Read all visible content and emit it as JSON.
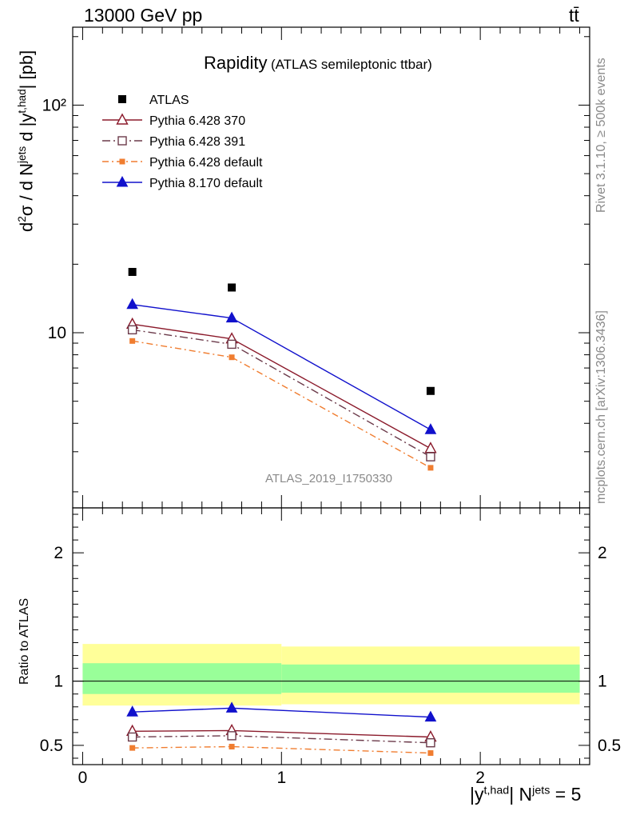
{
  "header": {
    "energy": "13000 GeV pp",
    "process": "tt̄"
  },
  "side_labels": {
    "rivet": "Rivet 3.1.10, ≥ 500k events",
    "mcplots": "mcplots.cern.ch [arXiv:1306.3436]"
  },
  "title": {
    "main": "Rapidity",
    "sub": "(ATLAS semileptonic ttbar)"
  },
  "watermark": "ATLAS_2019_I1750330",
  "axes": {
    "ylabel_main": "d²σ / d N^jets d |y^t,had| [pb]",
    "ylabel_ratio": "Ratio to ATLAS",
    "xlabel": "|y^t,had| N^jets = 5"
  },
  "legend": [
    "ATLAS",
    "Pythia 6.428 370",
    "Pythia 6.428 391",
    "Pythia 6.428 default",
    "Pythia 8.170 default"
  ],
  "colors": {
    "data": "#000000",
    "p370": "#8b1a2b",
    "p391": "#6b3a4a",
    "pdef": "#f07d30",
    "p8": "#1111cc",
    "band_inner": "#99ff99",
    "band_outer": "#ffff99"
  },
  "chart_data": {
    "type": "line",
    "x": [
      0.25,
      0.75,
      1.75
    ],
    "xlim": [
      -0.05,
      2.55
    ],
    "ylim_main": [
      1.7,
      220
    ],
    "yscale_main": "log",
    "ylim_ratio": [
      0.35,
      2.35
    ],
    "x_ticks": [
      "0",
      "1",
      "2"
    ],
    "y_ticks_main": [
      "10",
      "10²"
    ],
    "y_ticks_ratio": [
      "0.5",
      "1",
      "2"
    ],
    "data": {
      "name": "ATLAS",
      "values": [
        18.5,
        15.8,
        5.55
      ]
    },
    "series": [
      {
        "name": "Pythia 6.428 370",
        "values": [
          10.9,
          9.4,
          3.1
        ],
        "ratio": [
          0.61,
          0.615,
          0.565
        ]
      },
      {
        "name": "Pythia 6.428 391",
        "values": [
          10.3,
          8.9,
          2.85
        ],
        "ratio": [
          0.565,
          0.575,
          0.52
        ]
      },
      {
        "name": "Pythia 6.428 default",
        "values": [
          9.2,
          7.8,
          2.55
        ],
        "ratio": [
          0.48,
          0.49,
          0.44
        ]
      },
      {
        "name": "Pythia 8.170 default",
        "values": [
          13.3,
          11.6,
          3.75
        ],
        "ratio": [
          0.76,
          0.79,
          0.72
        ]
      }
    ],
    "band": {
      "edges": [
        0.0,
        1.0,
        2.5
      ],
      "inner": [
        [
          0.9,
          1.14
        ],
        [
          0.91,
          1.13
        ]
      ],
      "outer": [
        [
          0.81,
          1.29
        ],
        [
          0.82,
          1.27
        ]
      ]
    }
  }
}
